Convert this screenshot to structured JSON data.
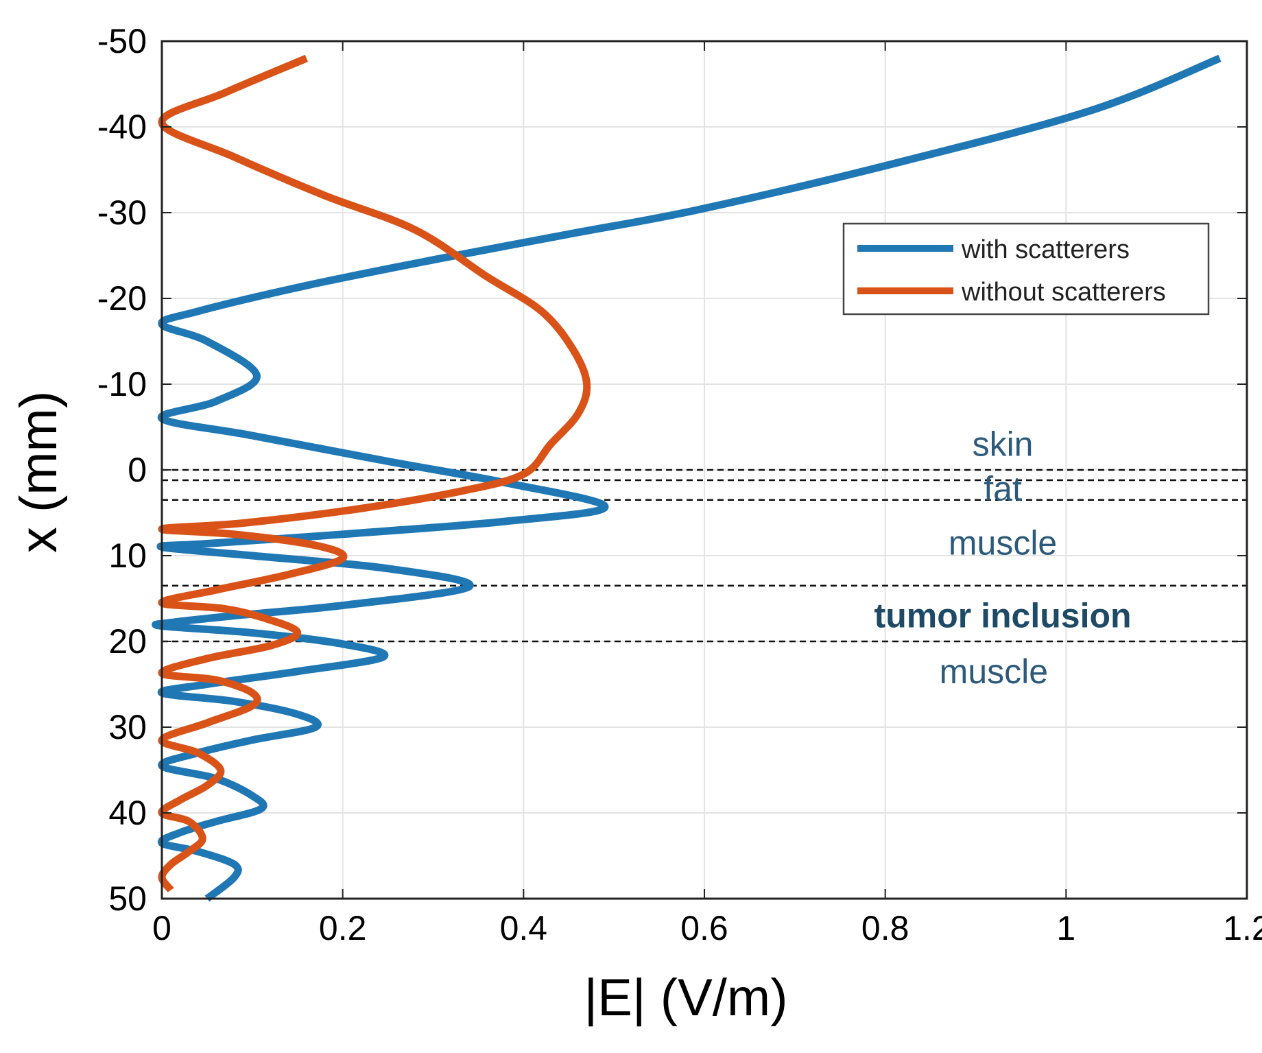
{
  "colors": {
    "with_scatterers": "#1f77b4",
    "without_scatterers": "#d95319",
    "grid": "#e3e3e3",
    "region_text": "#2d5a7a",
    "tumor_text": "#1f4a66"
  },
  "chart_data": {
    "type": "line",
    "title": "",
    "xlabel": "|E| (V/m)",
    "ylabel": "x (mm)",
    "xlim": [
      0,
      1.2
    ],
    "ylim": [
      -50,
      50
    ],
    "y_reversed": true,
    "grid": true,
    "xticks": [
      0,
      0.2,
      0.4,
      0.6,
      0.8,
      1,
      1.2
    ],
    "xtick_labels": [
      "0",
      "0.2",
      "0.4",
      "0.6",
      "0.8",
      "1",
      "1.2"
    ],
    "yticks": [
      -50,
      -40,
      -30,
      -20,
      -10,
      0,
      10,
      20,
      30,
      40,
      50
    ],
    "ytick_labels": [
      "-50",
      "-40",
      "-30",
      "-20",
      "-10",
      "0",
      "10",
      "20",
      "30",
      "40",
      "50"
    ],
    "legend_position": "top-right",
    "series": [
      {
        "name": "with scatterers",
        "color": "#1f77b4",
        "points": [
          [
            1.17,
            -48
          ],
          [
            1.03,
            -42
          ],
          [
            0.82,
            -36
          ],
          [
            0.6,
            -30.5
          ],
          [
            0.45,
            -27.5
          ],
          [
            0.3,
            -24.5
          ],
          [
            0.16,
            -21.5
          ],
          [
            0.04,
            -18.5
          ],
          [
            0.0,
            -17
          ],
          [
            0.05,
            -15
          ],
          [
            0.105,
            -11
          ],
          [
            0.06,
            -8
          ],
          [
            0.0,
            -6
          ],
          [
            0.1,
            -4
          ],
          [
            0.25,
            -1
          ],
          [
            0.38,
            1.5
          ],
          [
            0.49,
            4.3
          ],
          [
            0.38,
            6.0
          ],
          [
            0.2,
            7.5
          ],
          [
            0.05,
            8.6
          ],
          [
            0.0,
            9
          ],
          [
            0.1,
            10
          ],
          [
            0.25,
            11.5
          ],
          [
            0.34,
            13.6
          ],
          [
            0.2,
            15.8
          ],
          [
            0.08,
            17.0
          ],
          [
            0.01,
            17.8
          ],
          [
            0.0,
            18.2
          ],
          [
            0.1,
            19.0
          ],
          [
            0.2,
            20.3
          ],
          [
            0.245,
            21.8
          ],
          [
            0.15,
            23.5
          ],
          [
            0.05,
            25.0
          ],
          [
            0.0,
            26
          ],
          [
            0.08,
            27.0
          ],
          [
            0.15,
            28.5
          ],
          [
            0.17,
            30.0
          ],
          [
            0.1,
            31.5
          ],
          [
            0.04,
            33.0
          ],
          [
            0.0,
            34.5
          ],
          [
            0.06,
            36.0
          ],
          [
            0.1,
            38.0
          ],
          [
            0.11,
            39.5
          ],
          [
            0.06,
            41.0
          ],
          [
            0.02,
            42.3
          ],
          [
            0.0,
            43.5
          ],
          [
            0.04,
            44.5
          ],
          [
            0.08,
            46.0
          ],
          [
            0.08,
            47.5
          ],
          [
            0.05,
            50.0
          ]
        ]
      },
      {
        "name": "without scatterers",
        "color": "#d95319",
        "points": [
          [
            0.16,
            -48
          ],
          [
            0.07,
            -44
          ],
          [
            0.0,
            -40.5
          ],
          [
            0.08,
            -36.5
          ],
          [
            0.18,
            -32
          ],
          [
            0.28,
            -28
          ],
          [
            0.36,
            -22.5
          ],
          [
            0.42,
            -18.5
          ],
          [
            0.455,
            -14
          ],
          [
            0.47,
            -10
          ],
          [
            0.46,
            -6.5
          ],
          [
            0.43,
            -3
          ],
          [
            0.4,
            0.5
          ],
          [
            0.33,
            2.5
          ],
          [
            0.22,
            4.5
          ],
          [
            0.09,
            6.2
          ],
          [
            0.0,
            6.9
          ],
          [
            0.08,
            7.5
          ],
          [
            0.17,
            8.8
          ],
          [
            0.2,
            10.3
          ],
          [
            0.14,
            12.2
          ],
          [
            0.06,
            14.0
          ],
          [
            0.0,
            15.5
          ],
          [
            0.07,
            16.2
          ],
          [
            0.12,
            17.5
          ],
          [
            0.15,
            19.0
          ],
          [
            0.12,
            20.5
          ],
          [
            0.05,
            22.0
          ],
          [
            0.0,
            23.7
          ],
          [
            0.06,
            24.5
          ],
          [
            0.1,
            26.0
          ],
          [
            0.1,
            27.5
          ],
          [
            0.05,
            29.5
          ],
          [
            0.0,
            31.5
          ],
          [
            0.04,
            33.0
          ],
          [
            0.065,
            35.0
          ],
          [
            0.05,
            36.8
          ],
          [
            0.02,
            38.5
          ],
          [
            0.0,
            40.0
          ],
          [
            0.03,
            41.0
          ],
          [
            0.045,
            43.0
          ],
          [
            0.03,
            44.5
          ],
          [
            0.01,
            46.0
          ],
          [
            0.0,
            47.5
          ],
          [
            0.01,
            49.0
          ]
        ]
      }
    ],
    "boundaries": [
      {
        "x_start": 0,
        "y": 0
      },
      {
        "x_start": 0,
        "y": 1.2
      },
      {
        "x_start": 0,
        "y": 3.5
      },
      {
        "x_start": 0,
        "y": 13.5
      },
      {
        "x_start": 0,
        "y": 20
      }
    ],
    "annotations": [
      {
        "text": "skin",
        "x": 0.93,
        "y": -3,
        "bold": false
      },
      {
        "text": "fat",
        "x": 0.93,
        "y": 2.2,
        "bold": false
      },
      {
        "text": "muscle",
        "x": 0.93,
        "y": 8.5,
        "bold": false
      },
      {
        "text": "tumor inclusion",
        "x": 0.93,
        "y": 17,
        "bold": true
      },
      {
        "text": "muscle",
        "x": 0.92,
        "y": 23.5,
        "bold": false
      }
    ]
  }
}
